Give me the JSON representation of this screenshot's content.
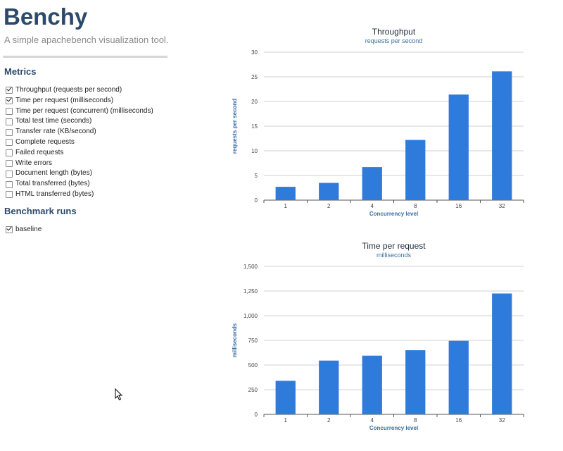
{
  "app": {
    "title": "Benchy",
    "tagline": "A simple apachebench visualization tool."
  },
  "metrics": {
    "heading": "Metrics",
    "items": [
      {
        "label": "Throughput (requests per second)",
        "checked": true
      },
      {
        "label": "Time per request (milliseconds)",
        "checked": true
      },
      {
        "label": "Time per request (concurrent) (milliseconds)",
        "checked": false
      },
      {
        "label": "Total test time (seconds)",
        "checked": false
      },
      {
        "label": "Transfer rate (KB/second)",
        "checked": false
      },
      {
        "label": "Complete requests",
        "checked": false
      },
      {
        "label": "Failed requests",
        "checked": false
      },
      {
        "label": "Write errors",
        "checked": false
      },
      {
        "label": "Document length (bytes)",
        "checked": false
      },
      {
        "label": "Total transferred (bytes)",
        "checked": false
      },
      {
        "label": "HTML transferred (bytes)",
        "checked": false
      }
    ]
  },
  "runs": {
    "heading": "Benchmark runs",
    "items": [
      {
        "label": "baseline",
        "checked": true
      }
    ]
  },
  "colors": {
    "bar": "#2f7bdc",
    "heading": "#2c4a6a",
    "subtitle": "#3a6ea5"
  },
  "chart_data": [
    {
      "type": "bar",
      "title": "Throughput",
      "subtitle": "requests per second",
      "xlabel": "Concurrency level",
      "ylabel": "requests per second",
      "categories": [
        "1",
        "2",
        "4",
        "8",
        "16",
        "32"
      ],
      "values": [
        2.7,
        3.5,
        6.7,
        12.2,
        21.4,
        26.1
      ],
      "ylim": [
        0,
        30
      ],
      "yticks": [
        0,
        5,
        10,
        15,
        20,
        25,
        30
      ],
      "ytick_labels": [
        "0",
        "5",
        "10",
        "15",
        "20",
        "25",
        "30"
      ],
      "grid": true,
      "legend": "none"
    },
    {
      "type": "bar",
      "title": "Time per request",
      "subtitle": "milliseconds",
      "xlabel": "Concurrency level",
      "ylabel": "milliseconds",
      "categories": [
        "1",
        "2",
        "4",
        "8",
        "16",
        "32"
      ],
      "values": [
        340,
        545,
        595,
        650,
        745,
        1225
      ],
      "ylim": [
        0,
        1500
      ],
      "yticks": [
        0,
        250,
        500,
        750,
        1000,
        1250,
        1500
      ],
      "ytick_labels": [
        "0",
        "250",
        "500",
        "750",
        "1,000",
        "1,250",
        "1,500"
      ],
      "grid": true,
      "legend": "none"
    }
  ]
}
